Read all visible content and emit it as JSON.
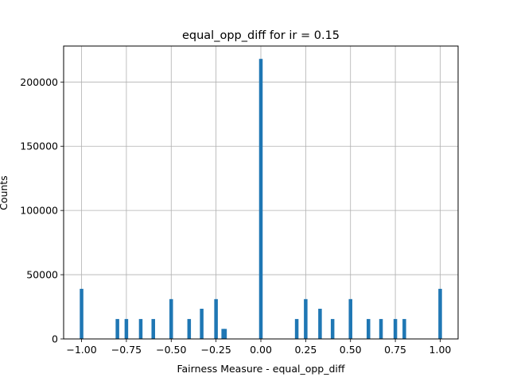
{
  "chart_data": {
    "type": "bar",
    "title": "equal_opp_diff for ir = 0.15",
    "xlabel": "Fairness Measure - equal_opp_diff",
    "ylabel": "Counts",
    "xlim": [
      -1.1,
      1.1
    ],
    "ylim": [
      0,
      228000
    ],
    "grid": true,
    "bar_color": "#1f77b4",
    "bin_width": 0.02,
    "x_ticks": [
      -1.0,
      -0.75,
      -0.5,
      -0.25,
      0.0,
      0.25,
      0.5,
      0.75,
      1.0
    ],
    "x_tick_labels": [
      "−1.00",
      "−0.75",
      "−0.50",
      "−0.25",
      "0.00",
      "0.25",
      "0.50",
      "0.75",
      "1.00"
    ],
    "y_ticks": [
      0,
      50000,
      100000,
      150000,
      200000
    ],
    "y_tick_labels": [
      "0",
      "50000",
      "100000",
      "150000",
      "200000"
    ],
    "bars": [
      {
        "x": -1.0,
        "value": 39000
      },
      {
        "x": -0.8,
        "value": 15500
      },
      {
        "x": -0.75,
        "value": 15500
      },
      {
        "x": -0.67,
        "value": 15500
      },
      {
        "x": -0.6,
        "value": 15500
      },
      {
        "x": -0.5,
        "value": 31000
      },
      {
        "x": -0.4,
        "value": 15500
      },
      {
        "x": -0.33,
        "value": 23500
      },
      {
        "x": -0.25,
        "value": 31000
      },
      {
        "x": -0.21,
        "value": 7800
      },
      {
        "x": -0.2,
        "value": 7800
      },
      {
        "x": 0.0,
        "value": 218000
      },
      {
        "x": 0.2,
        "value": 15500
      },
      {
        "x": 0.25,
        "value": 31000
      },
      {
        "x": 0.33,
        "value": 23500
      },
      {
        "x": 0.4,
        "value": 15500
      },
      {
        "x": 0.5,
        "value": 31000
      },
      {
        "x": 0.6,
        "value": 15500
      },
      {
        "x": 0.67,
        "value": 15500
      },
      {
        "x": 0.75,
        "value": 15500
      },
      {
        "x": 0.8,
        "value": 15500
      },
      {
        "x": 1.0,
        "value": 39000
      }
    ]
  }
}
